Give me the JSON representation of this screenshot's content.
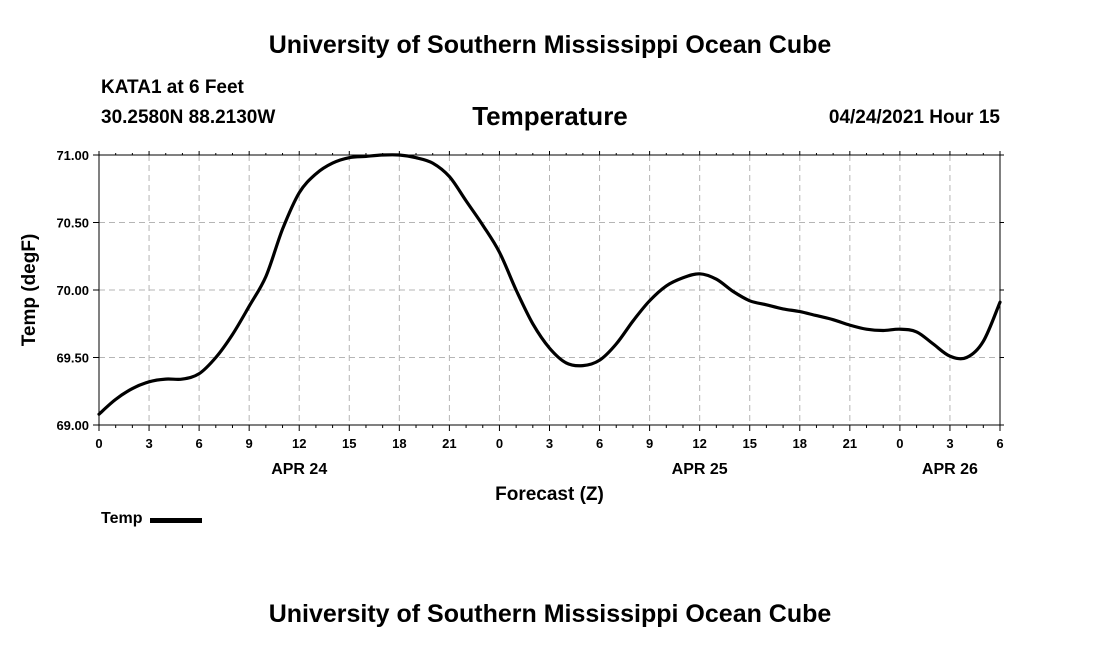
{
  "header": {
    "top_title": "University of Southern Mississippi Ocean Cube",
    "station": "KATA1 at 6 Feet",
    "coords": "30.2580N  88.2130W",
    "chart_title": "Temperature",
    "datetime": "04/24/2021 Hour 15",
    "bottom_title": "University of Southern Mississippi Ocean Cube"
  },
  "legend": {
    "label": "Temp",
    "color": "#000000"
  },
  "chart_data": {
    "type": "line",
    "title": "Temperature",
    "xlabel": "Forecast (Z)",
    "ylabel": "Temp (degF)",
    "xlim": [
      0,
      54
    ],
    "ylim": [
      69.0,
      71.0
    ],
    "grid": true,
    "x_tick_values": [
      0,
      3,
      6,
      9,
      12,
      15,
      18,
      21,
      24,
      27,
      30,
      33,
      36,
      39,
      42,
      45,
      48,
      51,
      54
    ],
    "x_tick_labels": [
      "0",
      "3",
      "6",
      "9",
      "12",
      "15",
      "18",
      "21",
      "0",
      "3",
      "6",
      "9",
      "12",
      "15",
      "18",
      "21",
      "0",
      "3",
      "6"
    ],
    "y_tick_values": [
      69.0,
      69.5,
      70.0,
      70.5,
      71.0
    ],
    "y_tick_labels": [
      "69.00",
      "69.50",
      "70.00",
      "70.50",
      "71.00"
    ],
    "date_labels": [
      {
        "x": 12,
        "label": "APR 24"
      },
      {
        "x": 36,
        "label": "APR 25"
      },
      {
        "x": 51,
        "label": "APR 26"
      }
    ],
    "series": [
      {
        "name": "Temp",
        "x": [
          0,
          1,
          2,
          3,
          4,
          5,
          6,
          7,
          8,
          9,
          10,
          11,
          12,
          13,
          14,
          15,
          16,
          17,
          18,
          19,
          20,
          21,
          22,
          23,
          24,
          25,
          26,
          27,
          28,
          29,
          30,
          31,
          32,
          33,
          34,
          35,
          36,
          37,
          38,
          39,
          40,
          41,
          42,
          43,
          44,
          45,
          46,
          47,
          48,
          49,
          50,
          51,
          52,
          53,
          54
        ],
        "values": [
          69.08,
          69.19,
          69.27,
          69.32,
          69.34,
          69.34,
          69.38,
          69.5,
          69.67,
          69.88,
          70.1,
          70.45,
          70.72,
          70.86,
          70.94,
          70.98,
          70.99,
          71.0,
          71.0,
          70.98,
          70.94,
          70.84,
          70.66,
          70.48,
          70.28,
          70.0,
          69.75,
          69.57,
          69.46,
          69.44,
          69.48,
          69.6,
          69.77,
          69.92,
          70.03,
          70.09,
          70.12,
          70.08,
          69.99,
          69.92,
          69.89,
          69.86,
          69.84,
          69.81,
          69.78,
          69.74,
          69.71,
          69.7,
          69.71,
          69.69,
          69.6,
          69.51,
          69.5,
          69.62,
          69.91
        ]
      }
    ]
  }
}
